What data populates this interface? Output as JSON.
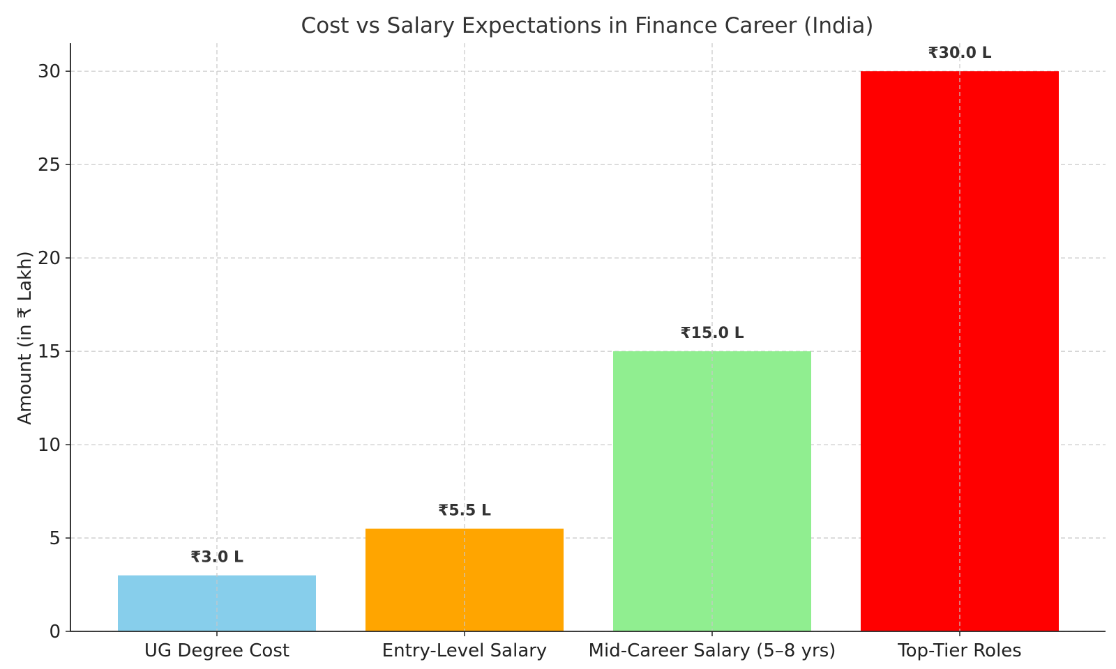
{
  "chart_data": {
    "type": "bar",
    "title": "Cost vs Salary Expectations in Finance Career (India)",
    "xlabel": "",
    "ylabel": "Amount (in ₹ Lakh)",
    "categories": [
      "UG Degree Cost",
      "Entry-Level Salary",
      "Mid-Career Salary (5–8 yrs)",
      "Top-Tier Roles"
    ],
    "values": [
      3.0,
      5.5,
      15.0,
      30.0
    ],
    "value_labels": [
      "₹3.0 L",
      "₹5.5 L",
      "₹15.0 L",
      "₹30.0 L"
    ],
    "colors": [
      "#87ceeb",
      "#ffa500",
      "#90ee90",
      "#ff0000"
    ],
    "ylim": [
      0,
      31.5
    ],
    "yticks": [
      0,
      5,
      10,
      15,
      20,
      25,
      30
    ],
    "grid": true
  }
}
